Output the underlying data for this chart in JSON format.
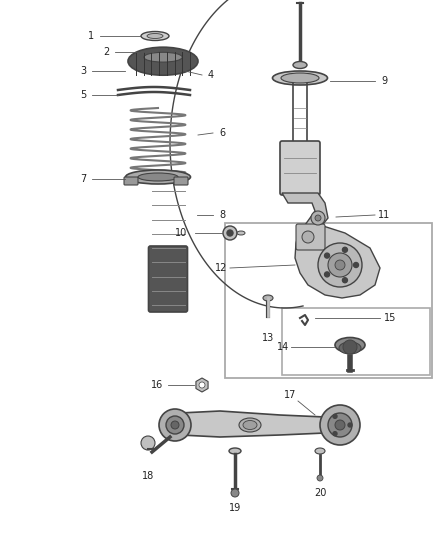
{
  "bg_color": "#ffffff",
  "line_color": "#555555",
  "label_color": "#333333",
  "darkgray": "#444444",
  "midgray": "#888888",
  "lightgray": "#cccccc"
}
